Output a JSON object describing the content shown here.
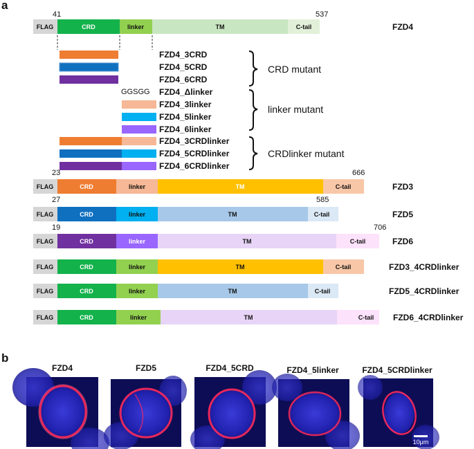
{
  "panels": {
    "a": "a",
    "b": "b"
  },
  "segment_labels": {
    "flag": "FLAG",
    "crd": "CRD",
    "linker": "linker",
    "tm": "TM",
    "ctail": "C-tail"
  },
  "colors": {
    "flag": "#d6d6d6",
    "fzd4_crd": "#13b24b",
    "fzd4_linker": "#92d050",
    "fzd4_tm": "#c9e6c2",
    "fzd3_crd": "#ef7d31",
    "fzd3_linker": "#f6b896",
    "fzd3_tm": "#ffc000",
    "fzd3_ctail": "#f8c7a8",
    "fzd5_crd": "#1070c0",
    "fzd5_linker": "#00b0f0",
    "fzd5_tm": "#a7c8e8",
    "fzd5_ctail": "#dbe8f5",
    "fzd6_crd": "#7030a0",
    "fzd6_linker": "#9966ff",
    "fzd6_tm": "#e8d4f7",
    "fzd6_ctail": "#fde2fb",
    "fzd4_ctail": "#e2f0d9"
  },
  "constructs": [
    {
      "name": "FZD4",
      "start": "41",
      "end": "537"
    },
    {
      "name": "FZD3",
      "start": "23",
      "end": "666"
    },
    {
      "name": "FZD5",
      "start": "27",
      "end": "585"
    },
    {
      "name": "FZD6",
      "start": "19",
      "end": "706"
    },
    {
      "name": "FZD3_4CRDlinker"
    },
    {
      "name": "FZD5_4CRDlinker"
    },
    {
      "name": "FZD6_4CRDlinker"
    }
  ],
  "mutants": [
    "FZD4_3CRD",
    "FZD4_5CRD",
    "FZD4_6CRD",
    "FZD4_Δlinker",
    "FZD4_3linker",
    "FZD4_5linker",
    "FZD4_6linker",
    "FZD4_3CRDlinker",
    "FZD4_5CRDlinker",
    "FZD4_6CRDlinker"
  ],
  "linker_seq": "GGSGG",
  "groups": [
    "CRD mutant",
    "linker mutant",
    "CRDlinker mutant"
  ],
  "micrographs": [
    "FZD4",
    "FZD5",
    "FZD4_5CRD",
    "FZD4_5linker",
    "FZD4_5CRDlinker"
  ],
  "scale_bar": "10μm"
}
